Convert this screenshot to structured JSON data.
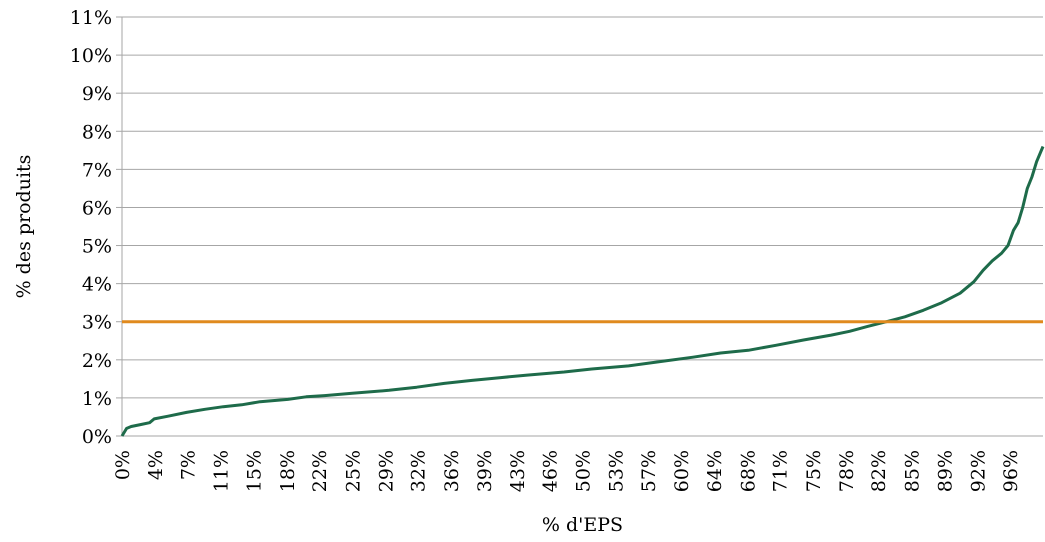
{
  "chart_data": {
    "type": "line",
    "xlabel": "% d'EPS",
    "ylabel": "% des produits",
    "xlim": [
      0,
      100
    ],
    "ylim": [
      0,
      11
    ],
    "grid": true,
    "y_ticks": [
      "0%",
      "1%",
      "2%",
      "3%",
      "4%",
      "5%",
      "6%",
      "7%",
      "8%",
      "9%",
      "10%",
      "11%"
    ],
    "y_tick_values": [
      0,
      1,
      2,
      3,
      4,
      5,
      6,
      7,
      8,
      9,
      10,
      11
    ],
    "x_ticks": [
      "0%",
      "4%",
      "7%",
      "11%",
      "15%",
      "18%",
      "22%",
      "25%",
      "29%",
      "32%",
      "36%",
      "39%",
      "43%",
      "46%",
      "50%",
      "53%",
      "57%",
      "60%",
      "64%",
      "68%",
      "71%",
      "75%",
      "78%",
      "82%",
      "85%",
      "89%",
      "92%",
      "96%"
    ],
    "x_tick_values": [
      0,
      3.6,
      7.1,
      10.7,
      14.3,
      17.9,
      21.4,
      25,
      28.6,
      32.1,
      35.7,
      39.3,
      42.9,
      46.4,
      50,
      53.6,
      57.1,
      60.7,
      64.3,
      67.9,
      71.4,
      75,
      78.6,
      82.1,
      85.7,
      89.3,
      92.9,
      96.4
    ],
    "series": [
      {
        "color": "#1e6b4a",
        "x": [
          0,
          0.5,
          1,
          2,
          3,
          3.5,
          5,
          7,
          9,
          11,
          13,
          15,
          18,
          20,
          22,
          25,
          29,
          32,
          35,
          38,
          41,
          44,
          48,
          51,
          55,
          58,
          62,
          65,
          68,
          71,
          74,
          77,
          79,
          81,
          83,
          85,
          87,
          89,
          91,
          92.5,
          93.5,
          94.5,
          95.5,
          96.2,
          96.8,
          97.3,
          97.8,
          98.3,
          98.8,
          99.3,
          100
        ],
        "y": [
          0,
          0.2,
          0.25,
          0.3,
          0.35,
          0.45,
          0.52,
          0.62,
          0.7,
          0.77,
          0.82,
          0.9,
          0.96,
          1.03,
          1.06,
          1.12,
          1.2,
          1.28,
          1.38,
          1.46,
          1.53,
          1.6,
          1.68,
          1.76,
          1.84,
          1.94,
          2.07,
          2.18,
          2.25,
          2.38,
          2.52,
          2.65,
          2.75,
          2.88,
          3.0,
          3.13,
          3.3,
          3.5,
          3.75,
          4.05,
          4.35,
          4.6,
          4.8,
          5.0,
          5.4,
          5.6,
          6.0,
          6.5,
          6.8,
          7.2,
          7.6
        ]
      },
      {
        "color": "#e08a1e",
        "x": [
          0,
          100
        ],
        "y": [
          3,
          3
        ]
      }
    ]
  }
}
